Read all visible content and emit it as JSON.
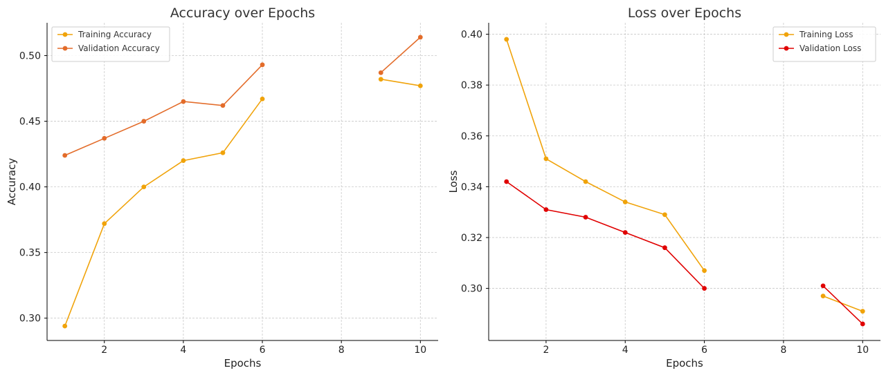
{
  "chart_data": [
    {
      "type": "line",
      "title": "Accuracy over Epochs",
      "xlabel": "Epochs",
      "ylabel": "Accuracy",
      "xlim": [
        0.55,
        10.45
      ],
      "ylim": [
        0.283,
        0.525
      ],
      "xticks": [
        2,
        4,
        6,
        8,
        10
      ],
      "yticks": [
        0.3,
        0.35,
        0.4,
        0.45,
        0.5
      ],
      "ytick_format": 2,
      "grid": true,
      "legend": "top-left",
      "series": [
        {
          "name": "Training Accuracy",
          "color": "#F0A30A",
          "points": [
            [
              1,
              0.294
            ],
            [
              2,
              0.372
            ],
            [
              3,
              0.4
            ],
            [
              4,
              0.42
            ],
            [
              5,
              0.426
            ],
            [
              6,
              0.467
            ],
            [
              7,
              null
            ],
            [
              8,
              null
            ],
            [
              9,
              0.482
            ],
            [
              10,
              0.477
            ]
          ]
        },
        {
          "name": "Validation Accuracy",
          "color": "#E36C2A",
          "points": [
            [
              1,
              0.424
            ],
            [
              2,
              0.437
            ],
            [
              3,
              0.45
            ],
            [
              4,
              0.465
            ],
            [
              5,
              0.462
            ],
            [
              6,
              0.493
            ],
            [
              7,
              null
            ],
            [
              8,
              null
            ],
            [
              9,
              0.487
            ],
            [
              10,
              0.514
            ]
          ]
        }
      ]
    },
    {
      "type": "line",
      "title": "Loss over Epochs",
      "xlabel": "Epochs",
      "ylabel": "Loss",
      "xlim": [
        0.55,
        10.45
      ],
      "ylim": [
        0.2795,
        0.4045
      ],
      "xticks": [
        2,
        4,
        6,
        8,
        10
      ],
      "yticks": [
        0.3,
        0.32,
        0.34,
        0.36,
        0.38,
        0.4
      ],
      "ytick_format": 2,
      "grid": true,
      "legend": "top-right",
      "series": [
        {
          "name": "Training Loss",
          "color": "#F0A30A",
          "points": [
            [
              1,
              0.398
            ],
            [
              2,
              0.351
            ],
            [
              3,
              0.342
            ],
            [
              4,
              0.334
            ],
            [
              5,
              0.329
            ],
            [
              6,
              0.307
            ],
            [
              7,
              null
            ],
            [
              8,
              null
            ],
            [
              9,
              0.297
            ],
            [
              10,
              0.291
            ]
          ]
        },
        {
          "name": "Validation Loss",
          "color": "#E00000",
          "points": [
            [
              1,
              0.342
            ],
            [
              2,
              0.331
            ],
            [
              3,
              0.328
            ],
            [
              4,
              0.322
            ],
            [
              5,
              0.316
            ],
            [
              6,
              0.3
            ],
            [
              7,
              null
            ],
            [
              8,
              null
            ],
            [
              9,
              0.301
            ],
            [
              10,
              0.286
            ]
          ]
        }
      ]
    }
  ]
}
